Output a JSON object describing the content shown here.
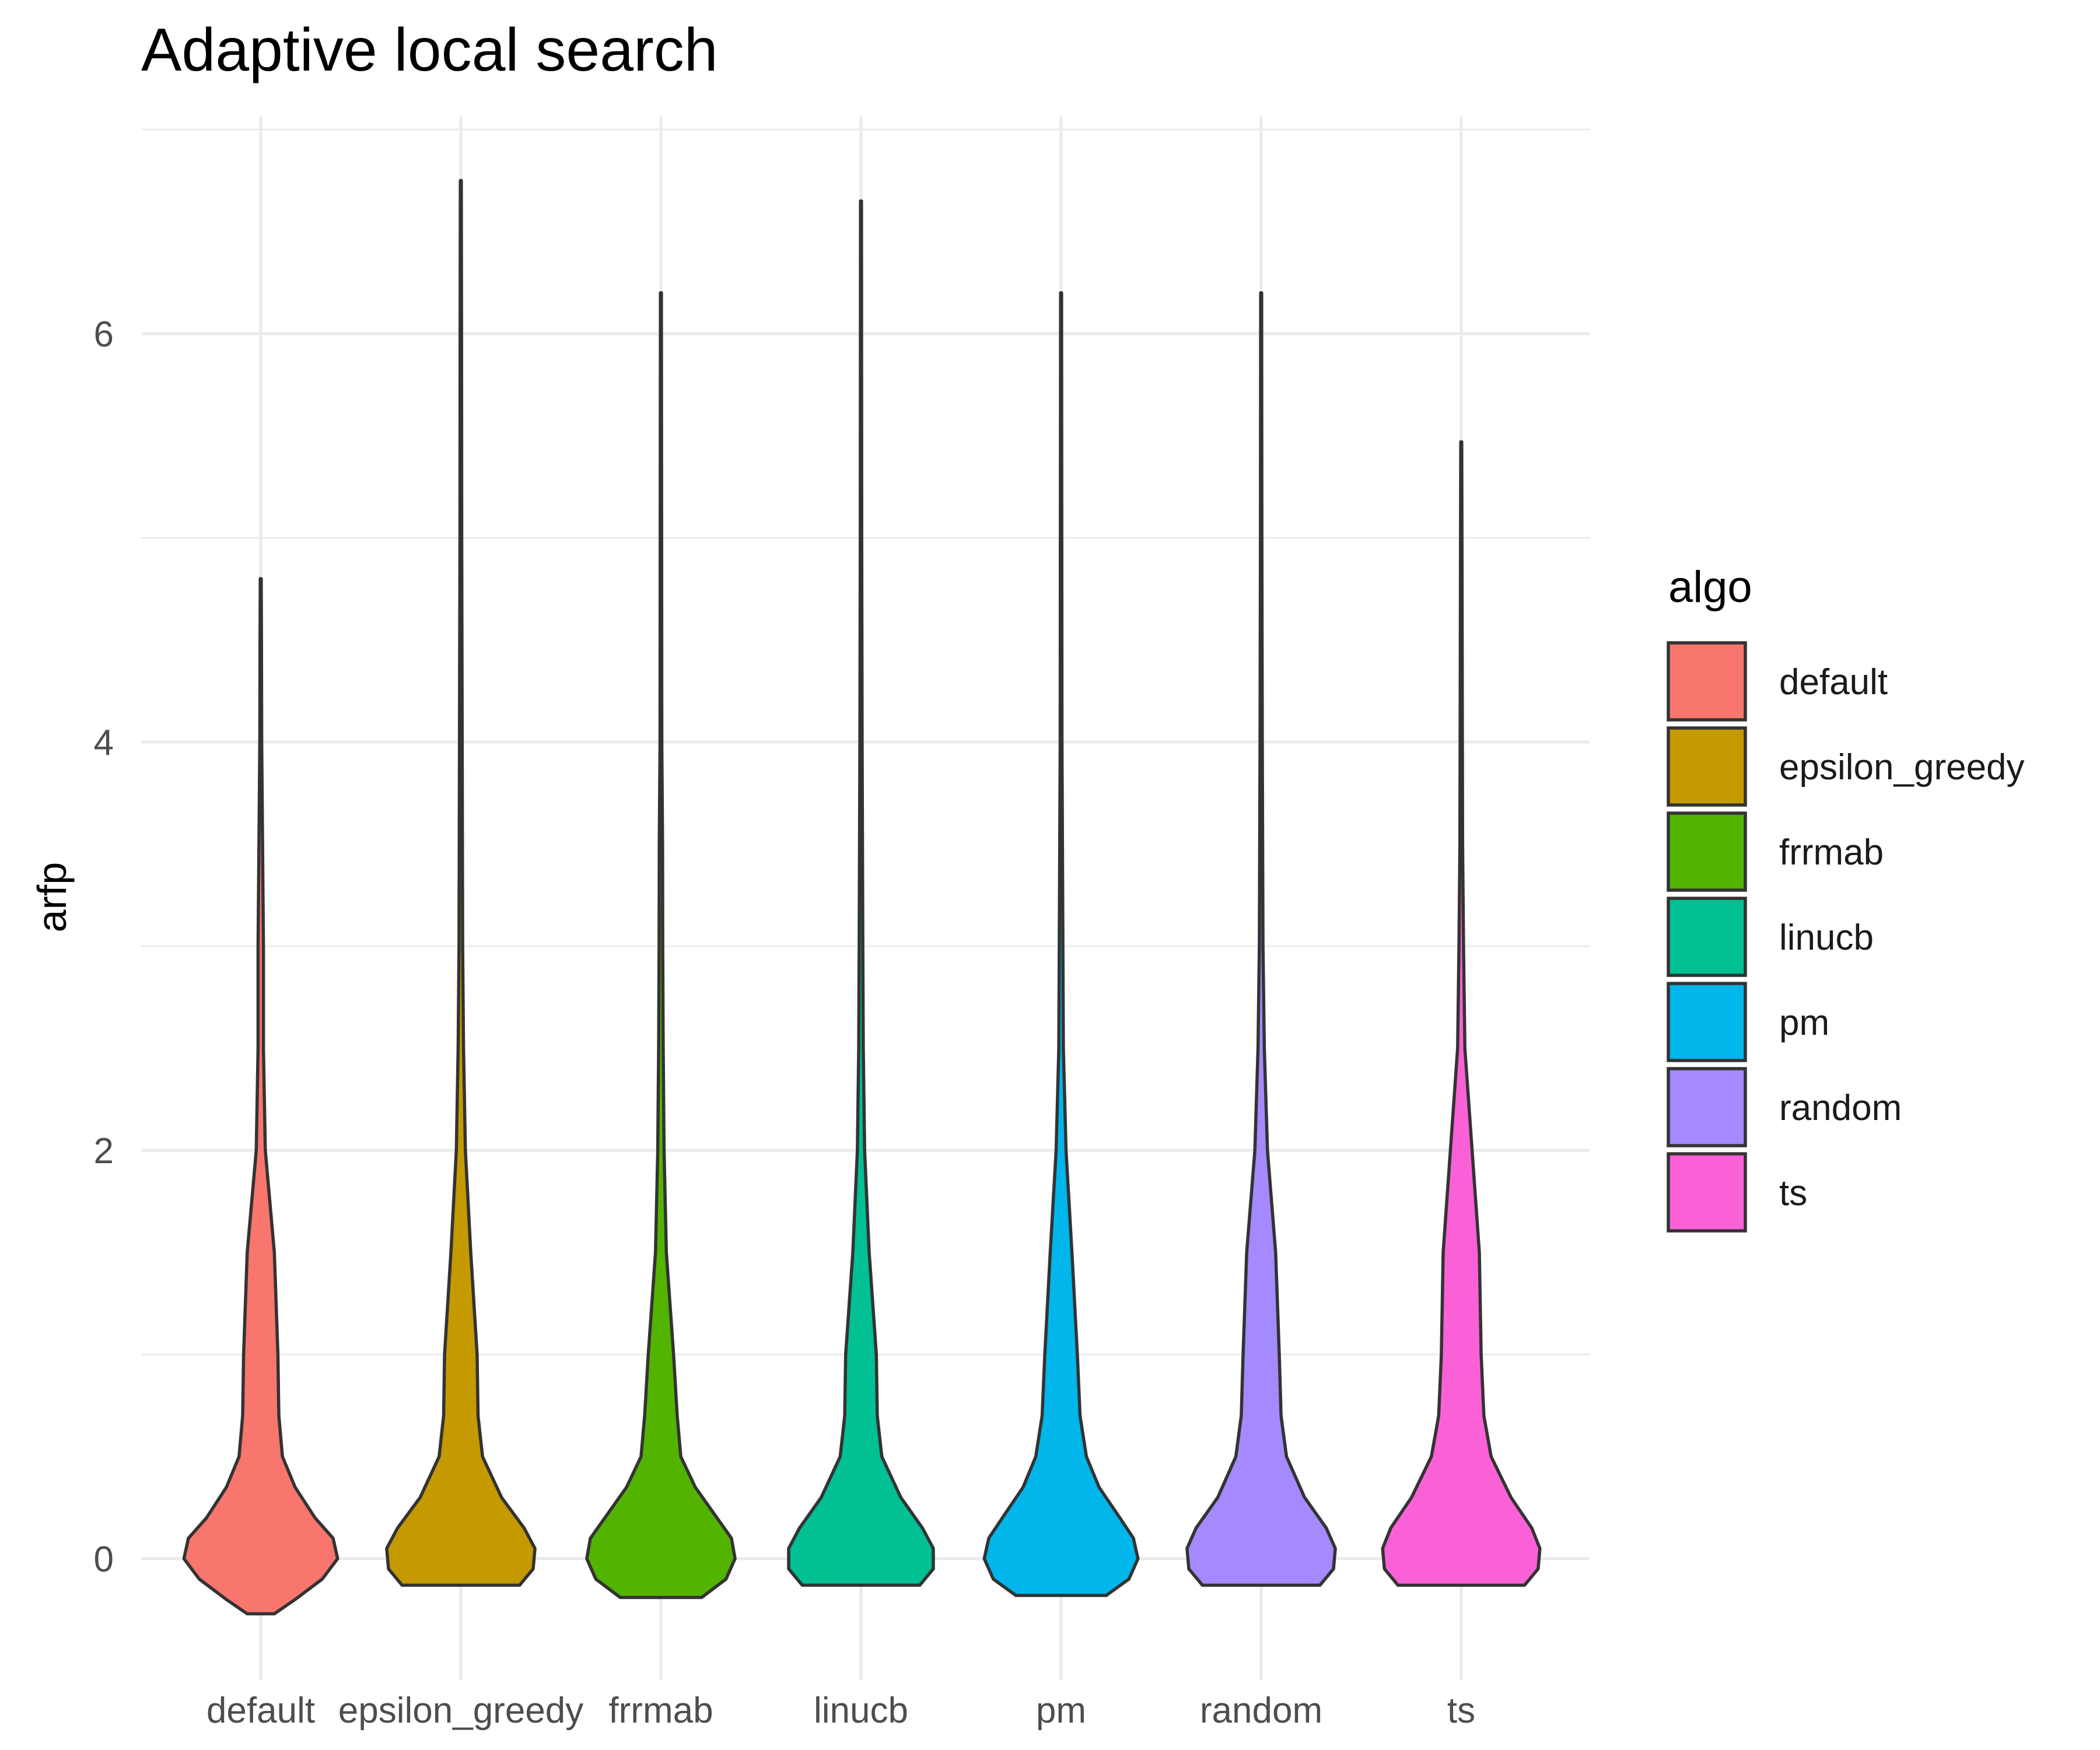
{
  "chart_data": {
    "type": "violin",
    "title": "Adaptive local search",
    "xlabel": "",
    "ylabel": "arfp",
    "categories": [
      "default",
      "epsilon_greedy",
      "frrmab",
      "linucb",
      "pm",
      "random",
      "ts"
    ],
    "ylim": [
      -0.6,
      7.0
    ],
    "yticks": [
      0,
      2,
      4,
      6
    ],
    "grid": true,
    "legend": {
      "title": "algo",
      "position": "right",
      "entries": [
        "default",
        "epsilon_greedy",
        "frrmab",
        "linucb",
        "pm",
        "random",
        "ts"
      ]
    },
    "colors": [
      "#F8766D",
      "#C49A00",
      "#53B400",
      "#00C094",
      "#00B6EB",
      "#A58AFF",
      "#FB61D7"
    ],
    "series": [
      {
        "name": "default",
        "min": -0.27,
        "max": 4.8,
        "profile": [
          [
            -0.27,
            0.15
          ],
          [
            -0.2,
            0.38
          ],
          [
            -0.1,
            0.68
          ],
          [
            0,
            0.85
          ],
          [
            0.1,
            0.8
          ],
          [
            0.2,
            0.6
          ],
          [
            0.35,
            0.38
          ],
          [
            0.5,
            0.24
          ],
          [
            0.7,
            0.2
          ],
          [
            1,
            0.19
          ],
          [
            1.5,
            0.15
          ],
          [
            2,
            0.05
          ],
          [
            2.5,
            0.03
          ],
          [
            3,
            0.03
          ],
          [
            3.5,
            0.02
          ],
          [
            4,
            0.01
          ],
          [
            4.5,
            0.008
          ],
          [
            4.8,
            0.005
          ]
        ]
      },
      {
        "name": "epsilon_greedy",
        "min": -0.13,
        "max": 6.75,
        "profile": [
          [
            -0.13,
            0.65
          ],
          [
            -0.05,
            0.8
          ],
          [
            0.05,
            0.82
          ],
          [
            0.15,
            0.7
          ],
          [
            0.3,
            0.45
          ],
          [
            0.5,
            0.24
          ],
          [
            0.7,
            0.19
          ],
          [
            1,
            0.18
          ],
          [
            1.5,
            0.11
          ],
          [
            2,
            0.05
          ],
          [
            2.5,
            0.03
          ],
          [
            3,
            0.02
          ],
          [
            4,
            0.015
          ],
          [
            5,
            0.01
          ],
          [
            6,
            0.008
          ],
          [
            6.75,
            0.005
          ]
        ]
      },
      {
        "name": "frrmab",
        "min": -0.19,
        "max": 6.2,
        "profile": [
          [
            -0.19,
            0.45
          ],
          [
            -0.1,
            0.72
          ],
          [
            0,
            0.82
          ],
          [
            0.1,
            0.78
          ],
          [
            0.2,
            0.62
          ],
          [
            0.35,
            0.38
          ],
          [
            0.5,
            0.22
          ],
          [
            0.7,
            0.18
          ],
          [
            1,
            0.14
          ],
          [
            1.5,
            0.06
          ],
          [
            2,
            0.035
          ],
          [
            2.5,
            0.025
          ],
          [
            3,
            0.02
          ],
          [
            3.5,
            0.018
          ],
          [
            4,
            0.01
          ],
          [
            5,
            0.008
          ],
          [
            6.2,
            0.005
          ]
        ]
      },
      {
        "name": "linucb",
        "min": -0.13,
        "max": 6.65,
        "profile": [
          [
            -0.13,
            0.65
          ],
          [
            -0.05,
            0.8
          ],
          [
            0.05,
            0.8
          ],
          [
            0.15,
            0.68
          ],
          [
            0.3,
            0.44
          ],
          [
            0.5,
            0.23
          ],
          [
            0.7,
            0.18
          ],
          [
            1,
            0.17
          ],
          [
            1.5,
            0.09
          ],
          [
            2,
            0.04
          ],
          [
            2.5,
            0.025
          ],
          [
            3,
            0.02
          ],
          [
            4,
            0.012
          ],
          [
            5,
            0.008
          ],
          [
            6.65,
            0.005
          ]
        ]
      },
      {
        "name": "pm",
        "min": -0.18,
        "max": 6.2,
        "profile": [
          [
            -0.18,
            0.5
          ],
          [
            -0.1,
            0.75
          ],
          [
            0,
            0.85
          ],
          [
            0.1,
            0.8
          ],
          [
            0.2,
            0.65
          ],
          [
            0.35,
            0.42
          ],
          [
            0.5,
            0.28
          ],
          [
            0.7,
            0.21
          ],
          [
            1,
            0.18
          ],
          [
            1.5,
            0.12
          ],
          [
            2,
            0.055
          ],
          [
            2.5,
            0.025
          ],
          [
            3,
            0.02
          ],
          [
            3.5,
            0.015
          ],
          [
            4,
            0.01
          ],
          [
            5,
            0.008
          ],
          [
            6.2,
            0.005
          ]
        ]
      },
      {
        "name": "random",
        "min": -0.13,
        "max": 6.2,
        "profile": [
          [
            -0.13,
            0.65
          ],
          [
            -0.05,
            0.8
          ],
          [
            0.05,
            0.82
          ],
          [
            0.15,
            0.72
          ],
          [
            0.3,
            0.48
          ],
          [
            0.5,
            0.28
          ],
          [
            0.7,
            0.22
          ],
          [
            1,
            0.2
          ],
          [
            1.5,
            0.16
          ],
          [
            2,
            0.07
          ],
          [
            2.5,
            0.035
          ],
          [
            3,
            0.02
          ],
          [
            4,
            0.012
          ],
          [
            5,
            0.008
          ],
          [
            6.2,
            0.005
          ]
        ]
      },
      {
        "name": "ts",
        "min": -0.13,
        "max": 5.47,
        "profile": [
          [
            -0.13,
            0.7
          ],
          [
            -0.05,
            0.85
          ],
          [
            0.05,
            0.87
          ],
          [
            0.15,
            0.78
          ],
          [
            0.3,
            0.55
          ],
          [
            0.5,
            0.33
          ],
          [
            0.7,
            0.25
          ],
          [
            1,
            0.22
          ],
          [
            1.5,
            0.2
          ],
          [
            2,
            0.12
          ],
          [
            2.5,
            0.04
          ],
          [
            3,
            0.025
          ],
          [
            3.5,
            0.015
          ],
          [
            4,
            0.012
          ],
          [
            5,
            0.008
          ],
          [
            5.47,
            0.005
          ]
        ]
      }
    ]
  }
}
